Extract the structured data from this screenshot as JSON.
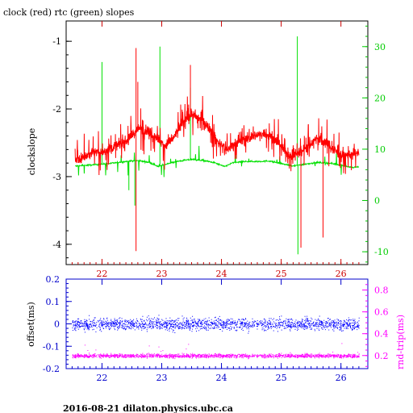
{
  "title": "clock (red) rtc (green) slopes",
  "footer": "2016-08-21 dilaton.physics.ubc.ca",
  "colors": {
    "clock": "#ff0000",
    "rtc": "#00e000",
    "left_axis": "#000000",
    "right_axis_top": "#00cc00",
    "bottom_axis_top": "#cc0000",
    "axis_bottom": "#0000cc",
    "offset": "#0000ff",
    "roundtrip": "#ff00ff"
  },
  "chart_data": [
    {
      "type": "line",
      "title": "clock (red) rtc (green) slopes",
      "ylabel": "clockslope",
      "xlim": [
        21.4,
        26.45
      ],
      "ylim": [
        -4.3,
        -0.7
      ],
      "y2lim": [
        -12.5,
        35
      ],
      "x_ticks": [
        "22",
        "23",
        "24",
        "25",
        "26"
      ],
      "y_ticks": [
        "-1",
        "-2",
        "-3",
        "-4"
      ],
      "y2_ticks": [
        "30",
        "20",
        "10",
        "0",
        "-10"
      ],
      "series": [
        {
          "axis": "left",
          "x": [
            21.55,
            21.7,
            21.85,
            22.0,
            22.15,
            22.3,
            22.45,
            22.6,
            22.75,
            22.9,
            23.05,
            23.2,
            23.35,
            23.5,
            23.65,
            23.8,
            23.95,
            24.1,
            24.25,
            24.4,
            24.55,
            24.7,
            24.85,
            25.0,
            25.15,
            25.3,
            25.45,
            25.6,
            25.75,
            25.9,
            26.05,
            26.2,
            26.3
          ],
          "y": [
            -2.75,
            -2.72,
            -2.62,
            -2.65,
            -2.58,
            -2.52,
            -2.45,
            -2.28,
            -2.32,
            -2.4,
            -2.55,
            -2.42,
            -2.22,
            -2.08,
            -2.15,
            -2.28,
            -2.5,
            -2.6,
            -2.5,
            -2.45,
            -2.4,
            -2.35,
            -2.42,
            -2.55,
            -2.7,
            -2.65,
            -2.55,
            -2.42,
            -2.5,
            -2.62,
            -2.7,
            -2.66,
            -2.65
          ]
        },
        {
          "axis": "right",
          "x": [
            21.55,
            21.8,
            22.0,
            22.2,
            22.4,
            22.6,
            22.8,
            22.95,
            23.1,
            23.3,
            23.5,
            23.7,
            23.9,
            24.05,
            24.2,
            24.4,
            24.6,
            24.8,
            25.0,
            25.2,
            25.4,
            25.6,
            25.8,
            26.0,
            26.2,
            26.3
          ],
          "y": [
            6.7,
            6.9,
            7.1,
            7.3,
            7.6,
            7.8,
            7.4,
            6.6,
            7.2,
            7.7,
            8.0,
            7.8,
            7.3,
            6.6,
            7.4,
            7.6,
            7.6,
            7.7,
            7.2,
            6.7,
            7.1,
            7.4,
            7.3,
            6.9,
            6.4,
            6.6
          ]
        }
      ]
    },
    {
      "type": "scatter",
      "ylabel": "offset(ms)",
      "y2label": "rnd-trip(ms)",
      "xlim": [
        21.4,
        26.45
      ],
      "ylim": [
        -0.2,
        0.2
      ],
      "y2lim": [
        0.08,
        0.9
      ],
      "x_ticks": [
        "22",
        "23",
        "24",
        "25",
        "26"
      ],
      "y_ticks": [
        "0.2",
        "0.1",
        "0",
        "-0.1",
        "-0.2"
      ],
      "y2_ticks": [
        "0.8",
        "0.6",
        "0.4",
        "0.2"
      ],
      "series": [
        {
          "axis": "left",
          "x_range": [
            21.5,
            26.3
          ],
          "y_center": 0.0,
          "y_spread": 0.035
        },
        {
          "axis": "right",
          "x_range": [
            21.5,
            26.3
          ],
          "y_center": 0.2,
          "y_spread": 0.025
        }
      ]
    }
  ]
}
